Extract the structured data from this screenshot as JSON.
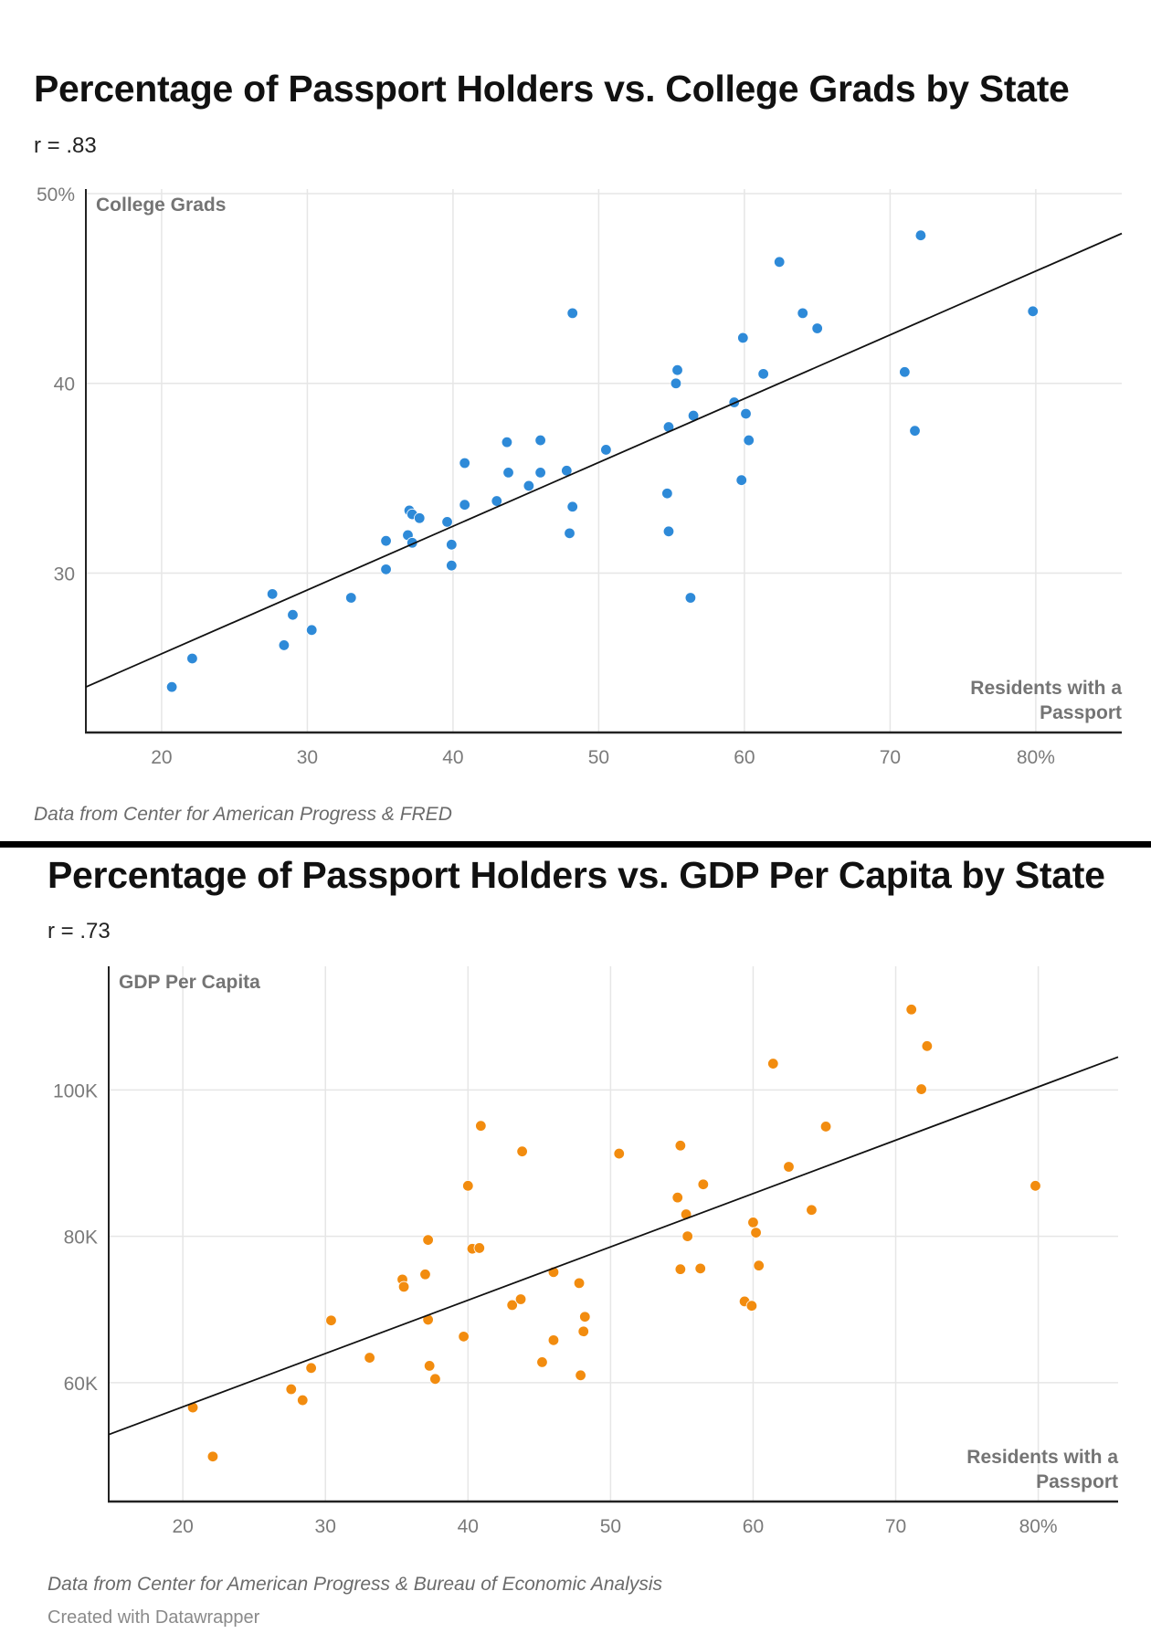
{
  "chart_data": [
    {
      "type": "scatter",
      "title": "Percentage of Passport Holders vs. College Grads by State",
      "subtitle": "r = .83",
      "xlabel": "Residents with a Passport",
      "ylabel": "College Grads",
      "xlim": [
        14.8,
        85.9
      ],
      "ylim": [
        21.6,
        50
      ],
      "x_ticks": [
        20,
        30,
        40,
        50,
        60,
        70,
        80
      ],
      "x_tick_labels": [
        "20",
        "30",
        "40",
        "50",
        "60",
        "70",
        "80%"
      ],
      "y_ticks": [
        30,
        40,
        50
      ],
      "y_tick_labels": [
        "30",
        "40",
        "50%"
      ],
      "grid": true,
      "color": "#2e8ad8",
      "trendline": {
        "x": [
          14.8,
          85.9
        ],
        "y": [
          24.0,
          47.9
        ]
      },
      "source": "Data from Center for American Progress & FRED",
      "points": [
        {
          "x": 20.7,
          "y": 24.0
        },
        {
          "x": 22.1,
          "y": 25.5
        },
        {
          "x": 27.6,
          "y": 28.9
        },
        {
          "x": 28.4,
          "y": 26.2
        },
        {
          "x": 29.0,
          "y": 27.8
        },
        {
          "x": 30.3,
          "y": 27.0
        },
        {
          "x": 33.0,
          "y": 28.7
        },
        {
          "x": 35.4,
          "y": 31.7
        },
        {
          "x": 35.4,
          "y": 30.2
        },
        {
          "x": 36.9,
          "y": 32.0
        },
        {
          "x": 37.0,
          "y": 33.3
        },
        {
          "x": 37.2,
          "y": 33.1
        },
        {
          "x": 37.2,
          "y": 31.6
        },
        {
          "x": 37.7,
          "y": 32.9
        },
        {
          "x": 39.6,
          "y": 32.7
        },
        {
          "x": 39.9,
          "y": 31.5
        },
        {
          "x": 39.9,
          "y": 30.4
        },
        {
          "x": 40.8,
          "y": 33.6
        },
        {
          "x": 40.8,
          "y": 35.8
        },
        {
          "x": 43.0,
          "y": 33.8
        },
        {
          "x": 43.7,
          "y": 36.9
        },
        {
          "x": 43.8,
          "y": 35.3
        },
        {
          "x": 45.2,
          "y": 34.6
        },
        {
          "x": 46.0,
          "y": 35.3
        },
        {
          "x": 46.0,
          "y": 37.0
        },
        {
          "x": 47.8,
          "y": 35.4
        },
        {
          "x": 48.2,
          "y": 33.5
        },
        {
          "x": 48.0,
          "y": 32.1
        },
        {
          "x": 48.2,
          "y": 43.7
        },
        {
          "x": 50.5,
          "y": 36.5
        },
        {
          "x": 54.7,
          "y": 34.2
        },
        {
          "x": 54.8,
          "y": 32.2
        },
        {
          "x": 54.8,
          "y": 37.7
        },
        {
          "x": 55.4,
          "y": 40.7
        },
        {
          "x": 55.3,
          "y": 40.0
        },
        {
          "x": 56.5,
          "y": 38.3
        },
        {
          "x": 56.3,
          "y": 28.7
        },
        {
          "x": 59.3,
          "y": 39.0
        },
        {
          "x": 59.9,
          "y": 42.4
        },
        {
          "x": 59.8,
          "y": 34.9
        },
        {
          "x": 60.1,
          "y": 38.4
        },
        {
          "x": 60.3,
          "y": 37.0
        },
        {
          "x": 61.3,
          "y": 40.5
        },
        {
          "x": 62.4,
          "y": 46.4
        },
        {
          "x": 64.0,
          "y": 43.7
        },
        {
          "x": 65.0,
          "y": 42.9
        },
        {
          "x": 71.0,
          "y": 40.6
        },
        {
          "x": 71.7,
          "y": 37.5
        },
        {
          "x": 72.1,
          "y": 47.8
        },
        {
          "x": 79.8,
          "y": 43.8
        }
      ]
    },
    {
      "type": "scatter",
      "title": "Percentage of Passport Holders vs. GDP Per Capita by State",
      "subtitle": "r = .73",
      "xlabel": "Residents with a Passport",
      "ylabel": "GDP Per Capita",
      "xlim": [
        14.8,
        85.6
      ],
      "ylim": [
        43.75,
        116.9
      ],
      "x_ticks": [
        20,
        30,
        40,
        50,
        60,
        70,
        80
      ],
      "x_tick_labels": [
        "20",
        "30",
        "40",
        "50",
        "60",
        "70",
        "80%"
      ],
      "y_ticks": [
        60,
        80,
        100
      ],
      "y_tick_labels": [
        "60K",
        "80K",
        "100K"
      ],
      "y_unit": "thousands USD",
      "grid": true,
      "color": "#f28c0f",
      "trendline": {
        "x": [
          14.8,
          85.6
        ],
        "y": [
          52.9,
          104.5
        ]
      },
      "source": "Data from Center for American Progress & Bureau of Economic Analysis",
      "credit": "Created with Datawrapper",
      "points": [
        {
          "x": 20.7,
          "y": 56.6
        },
        {
          "x": 22.1,
          "y": 49.9
        },
        {
          "x": 27.6,
          "y": 59.1
        },
        {
          "x": 28.4,
          "y": 57.6
        },
        {
          "x": 29.0,
          "y": 62.0
        },
        {
          "x": 30.4,
          "y": 68.5
        },
        {
          "x": 33.1,
          "y": 63.4
        },
        {
          "x": 35.4,
          "y": 74.1
        },
        {
          "x": 35.5,
          "y": 73.1
        },
        {
          "x": 37.0,
          "y": 74.8
        },
        {
          "x": 37.2,
          "y": 79.5
        },
        {
          "x": 37.2,
          "y": 68.6
        },
        {
          "x": 37.3,
          "y": 62.3
        },
        {
          "x": 37.7,
          "y": 60.5
        },
        {
          "x": 39.7,
          "y": 66.3
        },
        {
          "x": 40.0,
          "y": 86.9
        },
        {
          "x": 40.3,
          "y": 78.3
        },
        {
          "x": 40.8,
          "y": 78.4
        },
        {
          "x": 40.9,
          "y": 95.1
        },
        {
          "x": 43.1,
          "y": 70.6
        },
        {
          "x": 43.7,
          "y": 71.4
        },
        {
          "x": 43.8,
          "y": 91.6
        },
        {
          "x": 45.2,
          "y": 62.8
        },
        {
          "x": 46.0,
          "y": 75.1
        },
        {
          "x": 46.0,
          "y": 65.8
        },
        {
          "x": 47.8,
          "y": 73.6
        },
        {
          "x": 47.9,
          "y": 61.0
        },
        {
          "x": 48.2,
          "y": 69.0
        },
        {
          "x": 48.1,
          "y": 67.0
        },
        {
          "x": 50.6,
          "y": 91.3
        },
        {
          "x": 54.9,
          "y": 92.4
        },
        {
          "x": 54.7,
          "y": 85.3
        },
        {
          "x": 55.3,
          "y": 83.0
        },
        {
          "x": 55.4,
          "y": 80.0
        },
        {
          "x": 54.9,
          "y": 75.5
        },
        {
          "x": 56.3,
          "y": 75.6
        },
        {
          "x": 56.5,
          "y": 87.1
        },
        {
          "x": 59.4,
          "y": 71.1
        },
        {
          "x": 59.9,
          "y": 70.5
        },
        {
          "x": 60.0,
          "y": 81.9
        },
        {
          "x": 60.2,
          "y": 80.5
        },
        {
          "x": 60.4,
          "y": 76.0
        },
        {
          "x": 61.4,
          "y": 103.6
        },
        {
          "x": 62.5,
          "y": 89.5
        },
        {
          "x": 64.1,
          "y": 83.6
        },
        {
          "x": 65.1,
          "y": 95.0
        },
        {
          "x": 71.1,
          "y": 111.0
        },
        {
          "x": 72.2,
          "y": 106.0
        },
        {
          "x": 71.8,
          "y": 100.1
        },
        {
          "x": 79.8,
          "y": 86.9
        }
      ]
    }
  ],
  "labels": {
    "axis_label_line1": "Residents with a",
    "axis_label_line2": "Passport"
  }
}
